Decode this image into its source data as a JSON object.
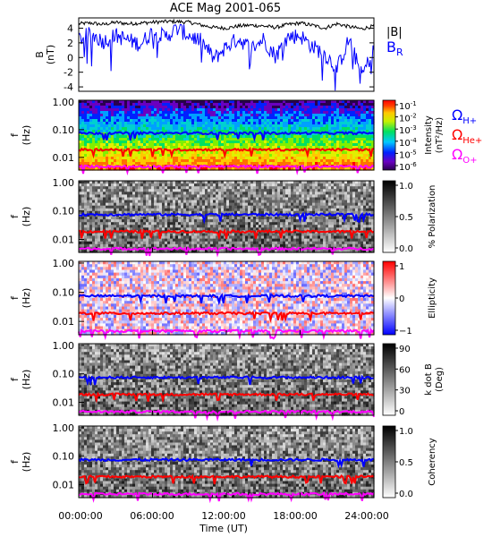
{
  "chart_data": [
    {
      "type": "line",
      "title": "ACE Mag 2001-065",
      "ylabel_line1": "B",
      "ylabel_line2": "(nT)",
      "yticks": [
        4,
        2,
        0,
        -2,
        -4
      ],
      "ylim": [
        -4.6,
        5.4
      ],
      "x_range_hours": [
        0,
        24
      ],
      "series": [
        {
          "name": "|B|",
          "color": "#000000",
          "x": [
            0,
            1,
            2,
            3,
            4,
            5,
            6,
            7,
            8,
            9,
            10,
            11,
            12,
            13,
            14,
            15,
            16,
            17,
            18,
            19,
            20,
            21,
            22,
            23,
            24
          ],
          "values": [
            4.6,
            4.7,
            4.5,
            4.8,
            4.6,
            4.7,
            4.8,
            4.9,
            4.9,
            4.8,
            4.4,
            4.1,
            4.0,
            4.3,
            4.4,
            4.3,
            4.1,
            4.5,
            4.7,
            4.4,
            4.0,
            4.6,
            4.2,
            3.9,
            4.3
          ]
        },
        {
          "name": "B",
          "name_subscript": "R",
          "color": "#0000ff",
          "x": [
            0,
            1,
            2,
            3,
            4,
            5,
            6,
            7,
            8,
            9,
            10,
            11,
            12,
            13,
            14,
            15,
            16,
            17,
            18,
            19,
            20,
            21,
            22,
            23,
            24
          ],
          "values": [
            2.5,
            3.2,
            2.2,
            3.0,
            2.4,
            1.8,
            3.5,
            2.8,
            3.9,
            3.0,
            2.2,
            -0.2,
            1.5,
            2.6,
            1.2,
            2.5,
            0.2,
            2.8,
            3.0,
            1.5,
            0.5,
            -1.5,
            2.5,
            -2.5,
            1.0
          ]
        }
      ]
    },
    {
      "type": "heatmap",
      "ylabel_line1": "f",
      "ylabel_line2": "(Hz)",
      "yticks": [
        "1.00",
        "0.10",
        "0.01"
      ],
      "colorbar": {
        "label_line1": "Intensity",
        "label_line2": "(nT²/Hz)",
        "scale": "log",
        "ticks": [
          [
            "10",
            "-1"
          ],
          [
            "10",
            "-2"
          ],
          [
            "10",
            "-3"
          ],
          [
            "10",
            "-4"
          ],
          [
            "10",
            "-5"
          ],
          [
            "10",
            "-6"
          ]
        ]
      },
      "gyro_lines": [
        {
          "label": "Ω",
          "subscript": "H+",
          "color": "#0000ff",
          "f_hz": 0.075
        },
        {
          "label": "Ω",
          "subscript": "He+",
          "color": "#ff0000",
          "f_hz": 0.019
        },
        {
          "label": "Ω",
          "subscript": "O+",
          "color": "#ff00ff",
          "f_hz": 0.0047
        }
      ]
    },
    {
      "type": "heatmap",
      "ylabel_line1": "f",
      "ylabel_line2": "(Hz)",
      "yticks": [
        "1.00",
        "0.10",
        "0.01"
      ],
      "colorbar": {
        "label": "% Polarization",
        "scale": "linear",
        "range": [
          0,
          1
        ],
        "ticks": [
          "1.0",
          "0.5",
          "0.0"
        ]
      }
    },
    {
      "type": "heatmap",
      "ylabel_line1": "f",
      "ylabel_line2": "(Hz)",
      "yticks": [
        "1.00",
        "0.10",
        "0.01"
      ],
      "colorbar": {
        "label": "Ellipticity",
        "scale": "linear",
        "range": [
          -1,
          1
        ],
        "ticks": [
          "1",
          "0",
          "−1"
        ]
      }
    },
    {
      "type": "heatmap",
      "ylabel_line1": "f",
      "ylabel_line2": "(Hz)",
      "yticks": [
        "1.00",
        "0.10",
        "0.01"
      ],
      "colorbar": {
        "label_line1": "k dot B",
        "label_line2": "(Deg)",
        "scale": "linear",
        "range": [
          0,
          90
        ],
        "ticks": [
          "90",
          "60",
          "30",
          "0"
        ]
      }
    },
    {
      "type": "heatmap",
      "ylabel_line1": "f",
      "ylabel_line2": "(Hz)",
      "yticks": [
        "1.00",
        "0.10",
        "0.01"
      ],
      "xticks": [
        "00:00:00",
        "06:00:00",
        "12:00:00",
        "18:00:00",
        "24:00:00"
      ],
      "xlabel": "Time (UT)",
      "colorbar": {
        "label": "Coherency",
        "scale": "linear",
        "range": [
          0,
          1
        ],
        "ticks": [
          "1.0",
          "0.5",
          "0.0"
        ]
      }
    }
  ]
}
